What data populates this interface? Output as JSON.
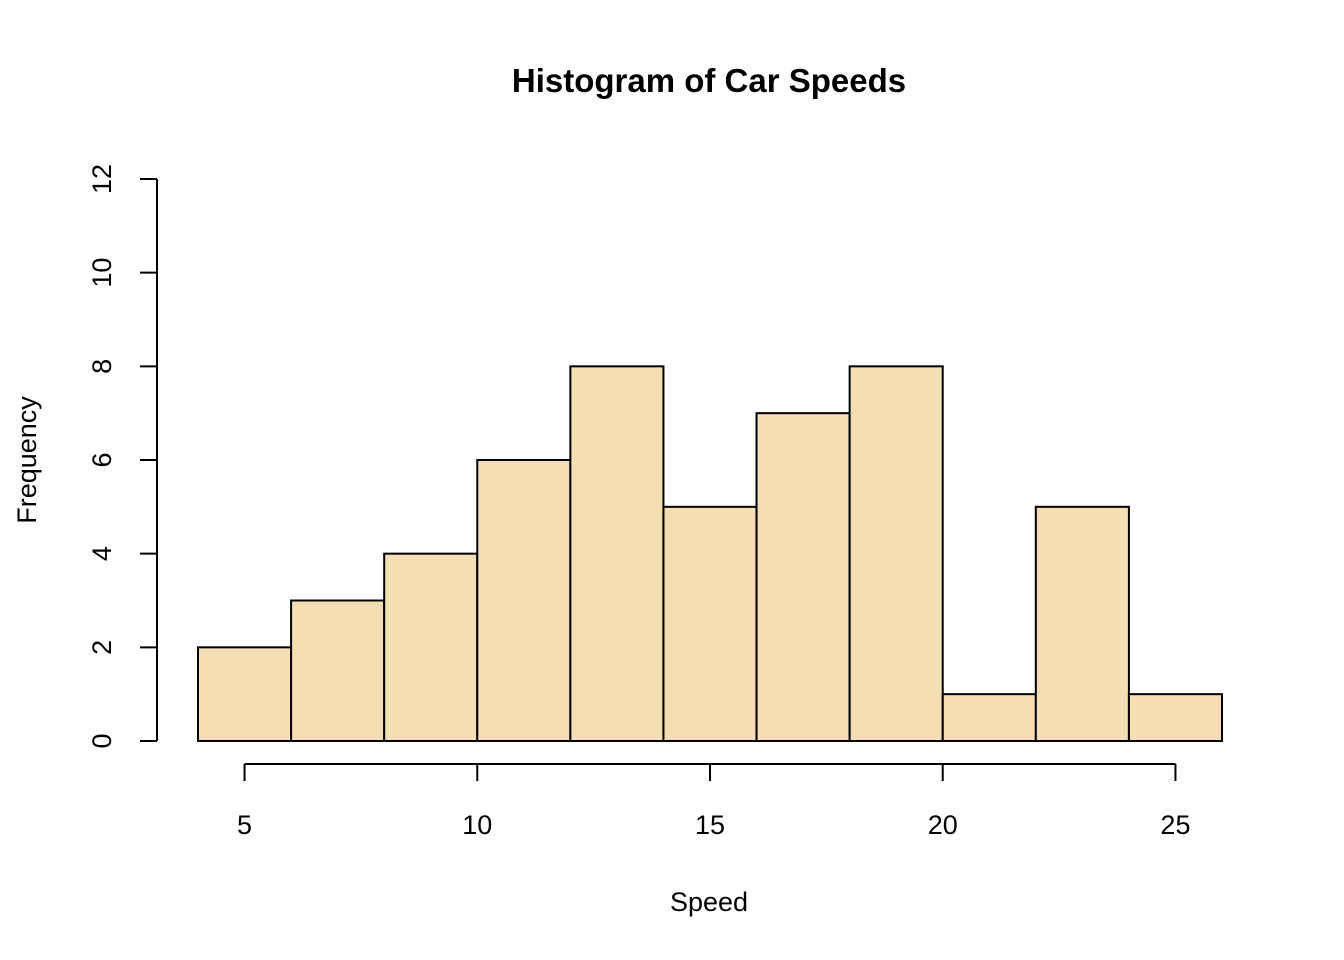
{
  "chart_data": {
    "type": "bar",
    "title": "Histogram of Car Speeds",
    "xlabel": "Speed",
    "ylabel": "Frequency",
    "bins": [
      {
        "start": 4,
        "end": 6,
        "count": 2
      },
      {
        "start": 6,
        "end": 8,
        "count": 3
      },
      {
        "start": 8,
        "end": 10,
        "count": 4
      },
      {
        "start": 10,
        "end": 12,
        "count": 6
      },
      {
        "start": 12,
        "end": 14,
        "count": 8
      },
      {
        "start": 14,
        "end": 16,
        "count": 5
      },
      {
        "start": 16,
        "end": 18,
        "count": 7
      },
      {
        "start": 18,
        "end": 20,
        "count": 8
      },
      {
        "start": 20,
        "end": 22,
        "count": 1
      },
      {
        "start": 22,
        "end": 24,
        "count": 5
      },
      {
        "start": 24,
        "end": 26,
        "count": 1
      }
    ],
    "xlim": [
      4,
      26
    ],
    "ylim": [
      0,
      12
    ],
    "x_ticks": [
      5,
      10,
      15,
      20,
      25
    ],
    "y_ticks": [
      0,
      2,
      4,
      6,
      8,
      10,
      12
    ],
    "bar_color": "#F5DEB3",
    "grid": false,
    "legend": "none"
  }
}
